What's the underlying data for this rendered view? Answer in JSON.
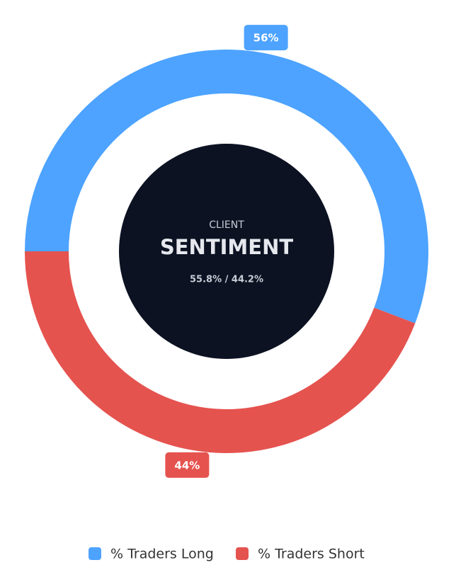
{
  "chart_data": {
    "type": "donut",
    "categories": [
      "% Traders Long",
      "% Traders Short"
    ],
    "values": [
      55.8,
      44.2
    ],
    "value_labels": [
      "56%",
      "44%"
    ],
    "colors": [
      "#4da3ff",
      "#e5534f"
    ],
    "center_label": "CLIENT",
    "center_title": "SENTIMENT",
    "center_subtitle": "55.8% / 44.2%",
    "legend": "bottom"
  }
}
